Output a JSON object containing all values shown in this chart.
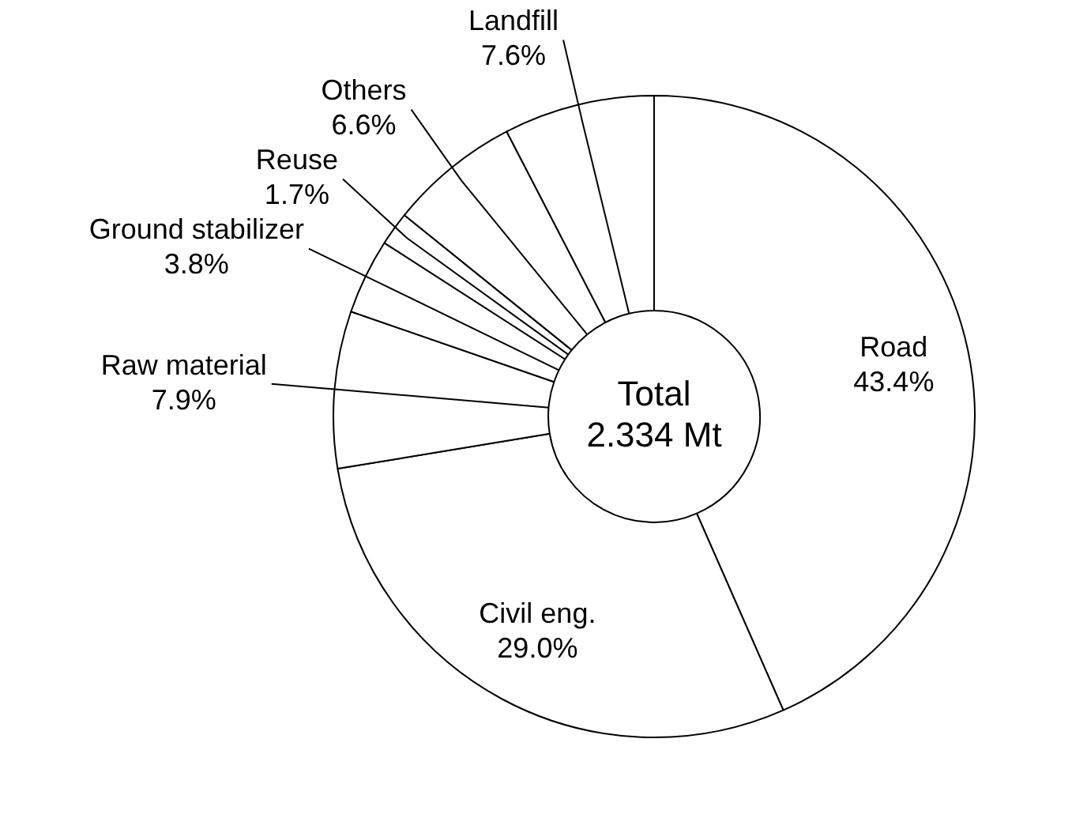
{
  "chart_data": {
    "type": "donut",
    "categories": [
      "Road",
      "Civil eng.",
      "Raw material",
      "Ground stabilizer",
      "Reuse",
      "Others",
      "Landfill"
    ],
    "values": [
      43.4,
      29.0,
      7.9,
      3.8,
      1.7,
      6.6,
      7.6
    ],
    "colors": [
      "#ffffff",
      "#ffffff",
      "#ffffff",
      "#ffffff",
      "#ffffff",
      "#ffffff",
      "#ffffff"
    ],
    "value_labels": [
      "43.4%",
      "29.0%",
      "7.9%",
      "3.8%",
      "1.7%",
      "6.6%",
      "7.6%"
    ],
    "annotations": [
      "Total",
      "2.334 Mt"
    ],
    "legend": false
  }
}
